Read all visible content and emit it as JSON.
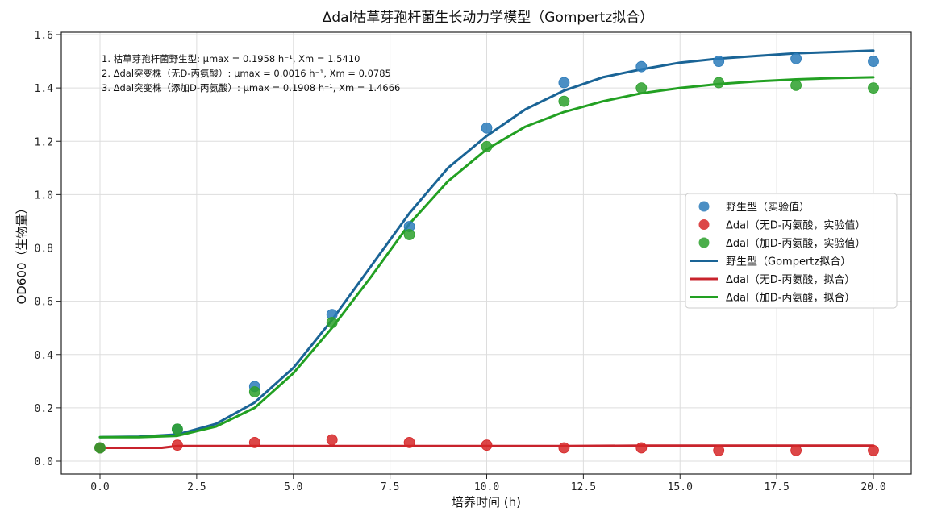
{
  "chart_data": {
    "type": "scatter",
    "title": "Δdal枯草芽孢杆菌生长动力学模型（Gompertz拟合）",
    "xlabel": "培养时间 (h)",
    "ylabel": "OD600（生物量）",
    "xlim": [
      -1.0,
      21.0
    ],
    "ylim": [
      -0.05,
      1.62
    ],
    "xticks": [
      0.0,
      2.5,
      5.0,
      7.5,
      10.0,
      12.5,
      15.0,
      17.5,
      20.0
    ],
    "xtick_labels": [
      "0.0",
      "2.5",
      "5.0",
      "7.5",
      "10.0",
      "12.5",
      "15.0",
      "17.5",
      "20.0"
    ],
    "yticks": [
      0.0,
      0.2,
      0.4,
      0.6,
      0.8,
      1.0,
      1.2,
      1.4,
      1.6
    ],
    "ytick_labels": [
      "0.0",
      "0.2",
      "0.4",
      "0.6",
      "0.8",
      "1.0",
      "1.2",
      "1.4",
      "1.6"
    ],
    "grid": true,
    "legend_position": "center right",
    "annotations": [
      "1. 枯草芽孢杆菌野生型: μmax = 0.1958 h⁻¹, Xm = 1.5410",
      "2. Δdal突变株（无D-丙氨酸）: μmax = 0.0016 h⁻¹, Xm = 0.0785",
      "3. Δdal突变株（添加D-丙氨酸）: μmax = 0.1908 h⁻¹, Xm = 1.4666"
    ],
    "x": [
      0,
      2,
      4,
      6,
      8,
      10,
      12,
      14,
      16,
      18,
      20
    ],
    "series": [
      {
        "name": "野生型（实验值）",
        "kind": "scatter",
        "color": "#2b7bba",
        "values": [
          0.05,
          0.12,
          0.28,
          0.55,
          0.88,
          1.25,
          1.42,
          1.48,
          1.5,
          1.51,
          1.5
        ]
      },
      {
        "name": "Δdal（无D-丙氨酸，实验值）",
        "kind": "scatter",
        "color": "#d62728",
        "values": [
          0.05,
          0.06,
          0.07,
          0.08,
          0.07,
          0.06,
          0.05,
          0.05,
          0.04,
          0.04,
          0.04
        ]
      },
      {
        "name": "Δdal（加D-丙氨酸，实验值）",
        "kind": "scatter",
        "color": "#2ca02c",
        "values": [
          0.05,
          0.12,
          0.26,
          0.52,
          0.85,
          1.18,
          1.35,
          1.4,
          1.42,
          1.41,
          1.4
        ]
      },
      {
        "name": "野生型（Gompertz拟合）",
        "kind": "line",
        "color": "#1a6496",
        "x": [
          0,
          1,
          2,
          3,
          4,
          5,
          6,
          7,
          8,
          9,
          10,
          11,
          12,
          13,
          14,
          15,
          16,
          17,
          18,
          19,
          20
        ],
        "values": [
          0.09,
          0.092,
          0.1,
          0.14,
          0.22,
          0.35,
          0.53,
          0.73,
          0.93,
          1.1,
          1.22,
          1.32,
          1.39,
          1.44,
          1.47,
          1.495,
          1.51,
          1.52,
          1.53,
          1.535,
          1.54
        ]
      },
      {
        "name": "Δdal（无D-丙氨酸，拟合）",
        "kind": "line",
        "color": "#c8232c",
        "x": [
          0,
          1.6,
          2,
          4,
          6,
          8,
          10,
          12,
          14,
          16,
          18,
          20
        ],
        "values": [
          0.05,
          0.05,
          0.057,
          0.057,
          0.057,
          0.057,
          0.057,
          0.057,
          0.058,
          0.058,
          0.058,
          0.058
        ]
      },
      {
        "name": "Δdal（加D-丙氨酸，拟合）",
        "kind": "line",
        "color": "#22a022",
        "x": [
          0,
          1,
          2,
          3,
          4,
          5,
          6,
          7,
          8,
          9,
          10,
          11,
          12,
          13,
          14,
          15,
          16,
          17,
          18,
          19,
          20
        ],
        "values": [
          0.09,
          0.09,
          0.095,
          0.13,
          0.2,
          0.33,
          0.5,
          0.69,
          0.89,
          1.05,
          1.17,
          1.255,
          1.31,
          1.35,
          1.38,
          1.4,
          1.415,
          1.425,
          1.432,
          1.437,
          1.44
        ]
      }
    ]
  }
}
